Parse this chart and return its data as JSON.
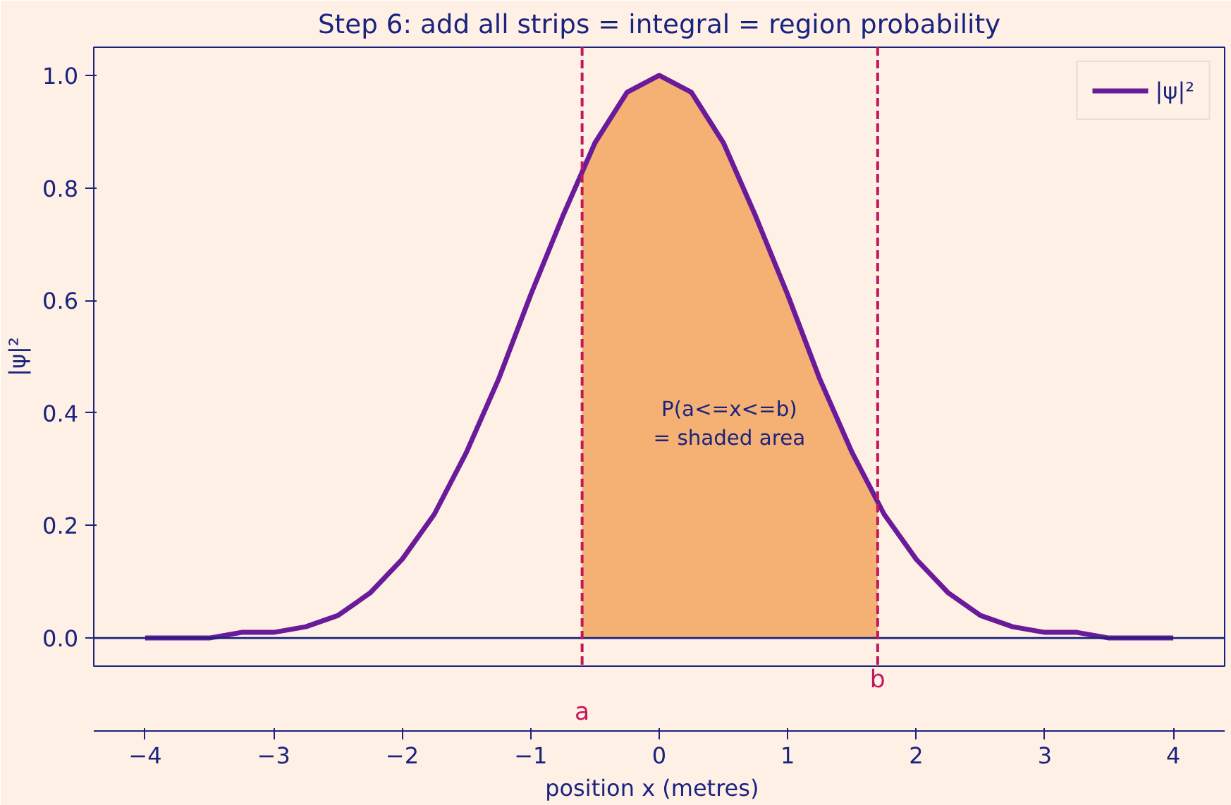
{
  "chart_data": {
    "type": "line",
    "title": "Step 6: add all strips = integral = region probability",
    "xlabel": "position  x  (metres)",
    "ylabel": "|ψ|²",
    "series": [
      {
        "type": "area",
        "color": "#f5b074",
        "x": [
          -0.6,
          -0.5,
          -0.25,
          0,
          0.25,
          0.5,
          0.75,
          1,
          1.25,
          1.5,
          1.7
        ],
        "values": [
          0.84,
          0.88,
          0.97,
          1.0,
          0.97,
          0.88,
          0.75,
          0.61,
          0.46,
          0.33,
          0.25
        ]
      },
      {
        "name": "|ψ|²",
        "color": "#6a1b9a",
        "x": [
          -4,
          -3.75,
          -3.5,
          -3.25,
          -3,
          -2.75,
          -2.5,
          -2.25,
          -2,
          -1.75,
          -1.5,
          -1.25,
          -1,
          -0.75,
          -0.5,
          -0.25,
          0,
          0.25,
          0.5,
          0.75,
          1,
          1.25,
          1.5,
          1.75,
          2,
          2.25,
          2.5,
          2.75,
          3,
          3.25,
          3.5,
          3.75,
          4
        ],
        "values": [
          0.0,
          0.0,
          0.0,
          0.01,
          0.01,
          0.02,
          0.04,
          0.08,
          0.14,
          0.22,
          0.33,
          0.46,
          0.61,
          0.75,
          0.88,
          0.97,
          1.0,
          0.97,
          0.88,
          0.75,
          0.61,
          0.46,
          0.33,
          0.22,
          0.14,
          0.08,
          0.04,
          0.02,
          0.01,
          0.01,
          0.0,
          0.0,
          0.0
        ]
      }
    ],
    "xlim": [
      -4.4,
      4.4
    ],
    "ylim": [
      -0.05,
      1.05
    ],
    "xticks": [
      -4,
      -3,
      -2,
      -1,
      0,
      1,
      2,
      3,
      4
    ],
    "yticks": [
      {
        "value": 0,
        "label": "0.0"
      },
      0.2,
      0.4,
      0.6,
      0.8,
      {
        "value": 1,
        "label": "1.0"
      }
    ],
    "ref_lines": [
      {
        "axis": "y",
        "value": 0,
        "label": null,
        "color": "#1a237e",
        "line_style": "solid"
      },
      {
        "axis": "x",
        "value": -0.6,
        "label": "a",
        "color": "#c2185b",
        "line_style": "dashed"
      },
      {
        "axis": "x",
        "value": 1.7,
        "label": "b",
        "color": "#c2185b",
        "line_style": "dashed"
      }
    ],
    "annotations": [
      "P(a<=x<=b)\n= shaded area"
    ],
    "legend": "top right",
    "grid": false
  }
}
